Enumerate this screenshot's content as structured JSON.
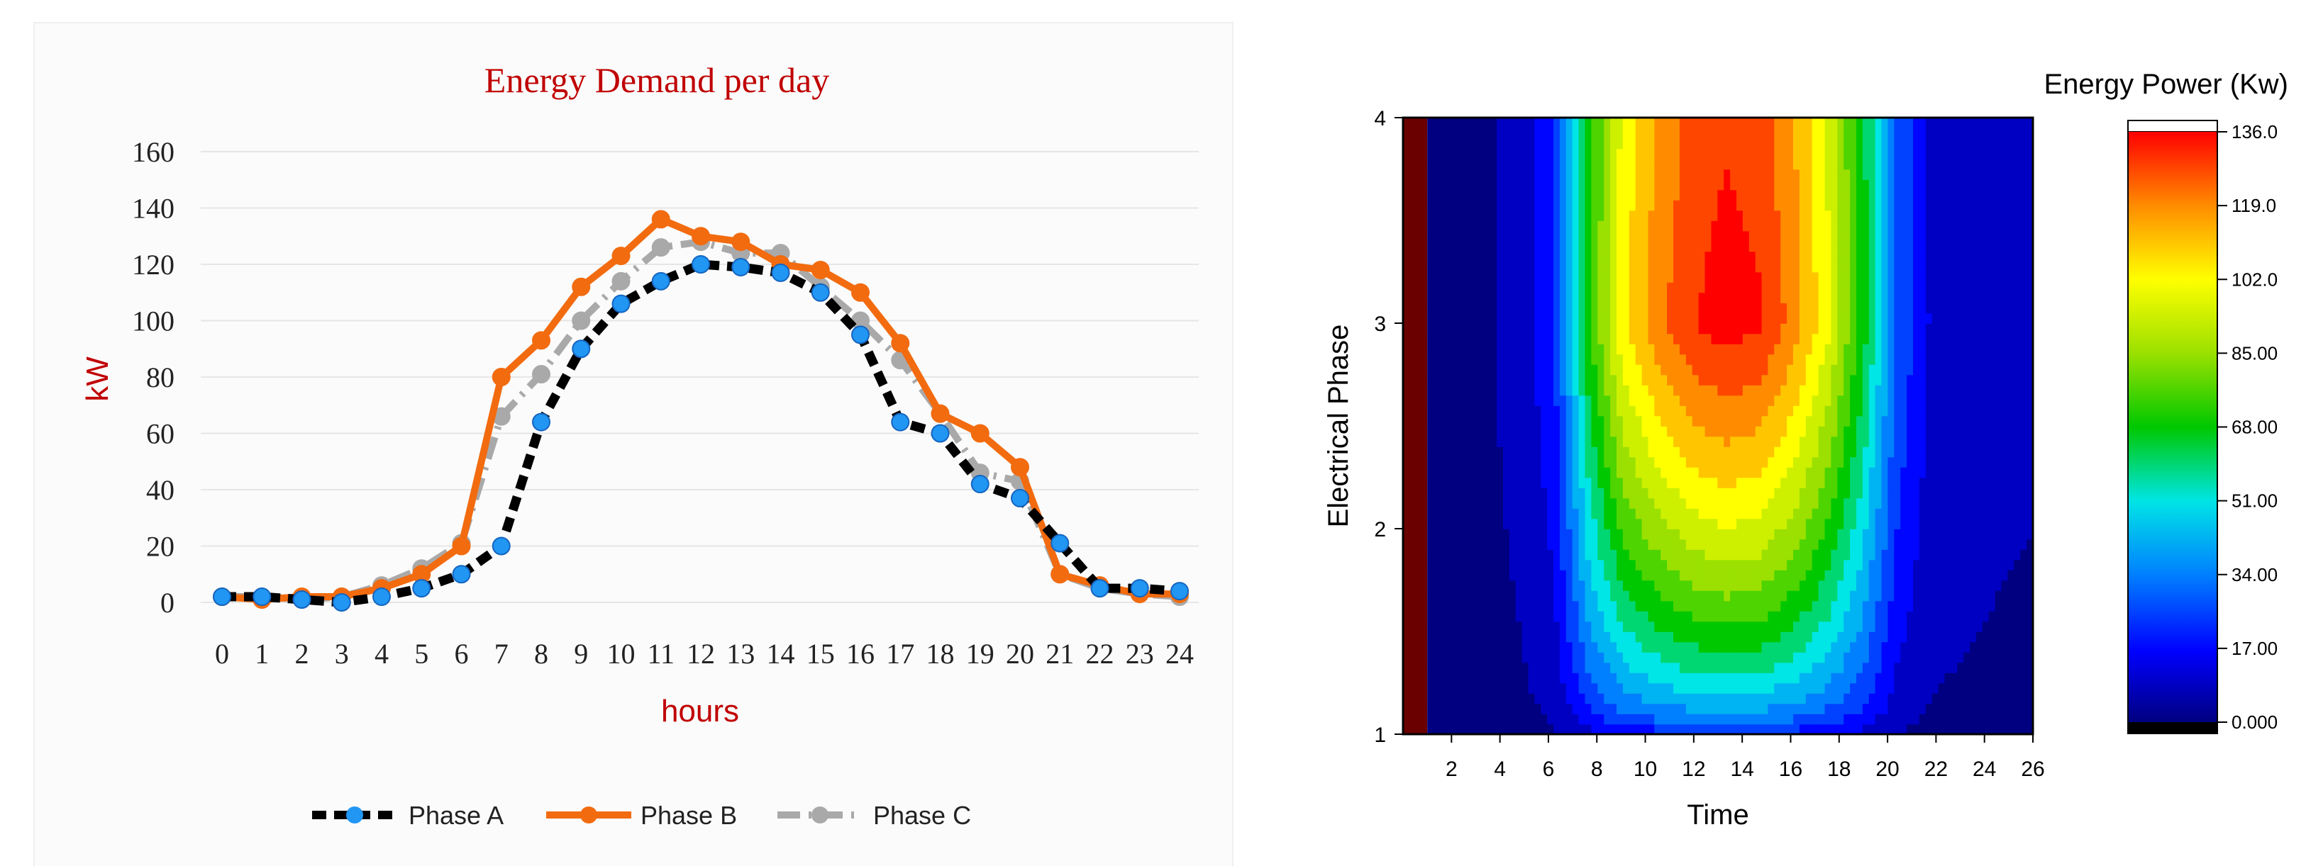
{
  "chart_data": [
    {
      "type": "line",
      "title": "Energy Demand per day",
      "xlabel": "hours",
      "ylabel": "kW",
      "x": [
        0,
        1,
        2,
        3,
        4,
        5,
        6,
        7,
        8,
        9,
        10,
        11,
        12,
        13,
        14,
        15,
        16,
        17,
        18,
        19,
        20,
        21,
        22,
        23,
        24
      ],
      "x_tick_labels": [
        "0",
        "1",
        "2",
        "3",
        "4",
        "5",
        "6",
        "7",
        "8",
        "9",
        "10",
        "11",
        "12",
        "13",
        "14",
        "15",
        "16",
        "17",
        "18",
        "19",
        "20",
        "21",
        "22",
        "23",
        "24"
      ],
      "y_tick_labels": [
        "0",
        "20",
        "40",
        "60",
        "80",
        "100",
        "120",
        "140",
        "160"
      ],
      "ylim": [
        0,
        160
      ],
      "series": [
        {
          "name": "Phase A",
          "color": "#2196f3",
          "line_color": "#000000",
          "style": "dashed",
          "values": [
            2,
            2,
            1,
            0,
            2,
            5,
            10,
            20,
            64,
            90,
            106,
            114,
            120,
            119,
            117,
            110,
            95,
            64,
            60,
            42,
            37,
            21,
            5,
            5,
            4
          ]
        },
        {
          "name": "Phase B",
          "color": "#f26b0f",
          "line_color": "#f26b0f",
          "style": "solid",
          "values": [
            2,
            1,
            2,
            2,
            5,
            10,
            20,
            80,
            93,
            112,
            123,
            136,
            130,
            128,
            120,
            118,
            110,
            92,
            67,
            60,
            48,
            10,
            6,
            3,
            3
          ]
        },
        {
          "name": "Phase C",
          "color": "#a9a9a9",
          "line_color": "#a9a9a9",
          "style": "dashdot",
          "values": [
            2,
            2,
            1,
            2,
            6,
            12,
            21,
            66,
            81,
            100,
            114,
            126,
            128,
            124,
            124,
            112,
            100,
            86,
            67,
            46,
            43,
            10,
            5,
            3,
            2
          ]
        }
      ],
      "legend": "bottom"
    },
    {
      "type": "heatmap",
      "title": "",
      "xlabel": "Time",
      "ylabel": "Electrical Phase",
      "x_tick_labels": [
        "2",
        "4",
        "6",
        "8",
        "10",
        "12",
        "14",
        "16",
        "18",
        "20",
        "22",
        "24",
        "26"
      ],
      "y_tick_labels": [
        "1",
        "2",
        "3",
        "4"
      ],
      "xlim": [
        0,
        26
      ],
      "ylim": [
        1,
        4
      ],
      "colorbar": {
        "title": "Energy Power (Kw)",
        "tick_labels": [
          "136.0",
          "119.0",
          "102.0",
          "85.00",
          "68.00",
          "51.00",
          "34.00",
          "17.00",
          "0.000"
        ],
        "range": [
          0,
          136
        ]
      },
      "time_profile_peak": [
        0,
        3,
        8,
        20,
        70,
        104,
        120,
        131,
        136,
        133,
        120,
        100,
        70,
        30,
        12,
        9,
        7,
        6
      ],
      "peak_phase": 3
    }
  ]
}
